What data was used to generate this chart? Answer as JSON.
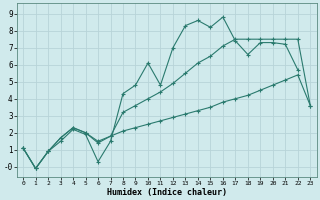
{
  "xlabel": "Humidex (Indice chaleur)",
  "bg_color": "#d0eaec",
  "grid_color": "#b8d4d8",
  "line_color": "#2a7a6e",
  "xlim": [
    -0.5,
    23.5
  ],
  "ylim": [
    -0.6,
    9.6
  ],
  "xticks": [
    0,
    1,
    2,
    3,
    4,
    5,
    6,
    7,
    8,
    9,
    10,
    11,
    12,
    13,
    14,
    15,
    16,
    17,
    18,
    19,
    20,
    21,
    22,
    23
  ],
  "yticks": [
    0,
    1,
    2,
    3,
    4,
    5,
    6,
    7,
    8,
    9
  ],
  "ytick_labels": [
    "-0",
    "1",
    "2",
    "3",
    "4",
    "5",
    "6",
    "7",
    "8",
    "9"
  ],
  "line1_x": [
    0,
    1,
    2,
    3,
    4,
    5,
    6,
    7,
    8,
    9,
    10,
    11,
    12,
    13,
    14,
    15,
    16,
    17,
    18,
    19,
    20,
    21,
    22
  ],
  "line1_y": [
    1.1,
    -0.1,
    0.9,
    1.5,
    2.2,
    1.9,
    0.3,
    1.5,
    4.3,
    4.8,
    6.1,
    4.8,
    7.0,
    8.3,
    8.6,
    8.2,
    8.8,
    7.4,
    6.6,
    7.3,
    7.3,
    7.2,
    5.7
  ],
  "line2_x": [
    0,
    1,
    2,
    3,
    4,
    5,
    6,
    7,
    8,
    9,
    10,
    11,
    12,
    13,
    14,
    15,
    16,
    17,
    18,
    19,
    20,
    21,
    22,
    23
  ],
  "line2_y": [
    1.1,
    -0.1,
    0.9,
    1.7,
    2.3,
    2.0,
    1.4,
    1.8,
    2.1,
    2.3,
    2.5,
    2.7,
    2.9,
    3.1,
    3.3,
    3.5,
    3.8,
    4.0,
    4.2,
    4.5,
    4.8,
    5.1,
    5.4,
    3.6
  ],
  "line3_x": [
    0,
    1,
    2,
    3,
    4,
    5,
    6,
    7,
    8,
    9,
    10,
    11,
    12,
    13,
    14,
    15,
    16,
    17,
    18,
    19,
    20,
    21,
    22,
    23
  ],
  "line3_y": [
    1.1,
    -0.1,
    0.9,
    1.7,
    2.3,
    2.0,
    1.5,
    1.8,
    3.2,
    3.6,
    4.0,
    4.4,
    4.9,
    5.5,
    6.1,
    6.5,
    7.1,
    7.5,
    7.5,
    7.5,
    7.5,
    7.5,
    7.5,
    3.6
  ]
}
